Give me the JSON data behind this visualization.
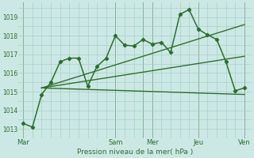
{
  "background_color": "#cce8e4",
  "grid_color": "#a0c8c4",
  "line_color": "#2d6e2d",
  "xlabel": "Pression niveau de la mer( hPa )",
  "ylim": [
    1012.5,
    1019.8
  ],
  "yticks": [
    1013,
    1014,
    1015,
    1016,
    1017,
    1018,
    1019
  ],
  "x_tick_labels": [
    "Mar",
    "Sam",
    "Mer",
    "Jeu",
    "Ven"
  ],
  "x_tick_positions": [
    0,
    10,
    14,
    19,
    24
  ],
  "main_line": {
    "x": [
      0,
      1,
      2,
      3,
      4,
      5,
      6,
      7,
      8,
      9,
      10,
      11,
      12,
      13,
      14,
      15,
      16,
      17,
      18,
      19,
      20,
      21,
      22,
      23,
      24
    ],
    "y": [
      1013.3,
      1013.1,
      1014.85,
      1015.5,
      1016.6,
      1016.8,
      1016.8,
      1015.3,
      1016.35,
      1016.8,
      1018.0,
      1017.5,
      1017.45,
      1017.8,
      1017.55,
      1017.65,
      1017.1,
      1019.15,
      1019.4,
      1018.35,
      1018.05,
      1017.8,
      1016.6,
      1015.05,
      1015.2
    ]
  },
  "fan_lines": [
    {
      "x": [
        2,
        24
      ],
      "y": [
        1015.2,
        1014.85
      ]
    },
    {
      "x": [
        2,
        24
      ],
      "y": [
        1015.2,
        1016.9
      ]
    },
    {
      "x": [
        2,
        24
      ],
      "y": [
        1015.2,
        1018.6
      ]
    }
  ],
  "vline_positions": [
    0,
    10,
    13,
    14,
    19,
    24
  ],
  "vline_color": "#3a7a3a",
  "vline_lw": 0.7,
  "marker": "D",
  "markersize": 2.2,
  "linewidth": 1.1
}
